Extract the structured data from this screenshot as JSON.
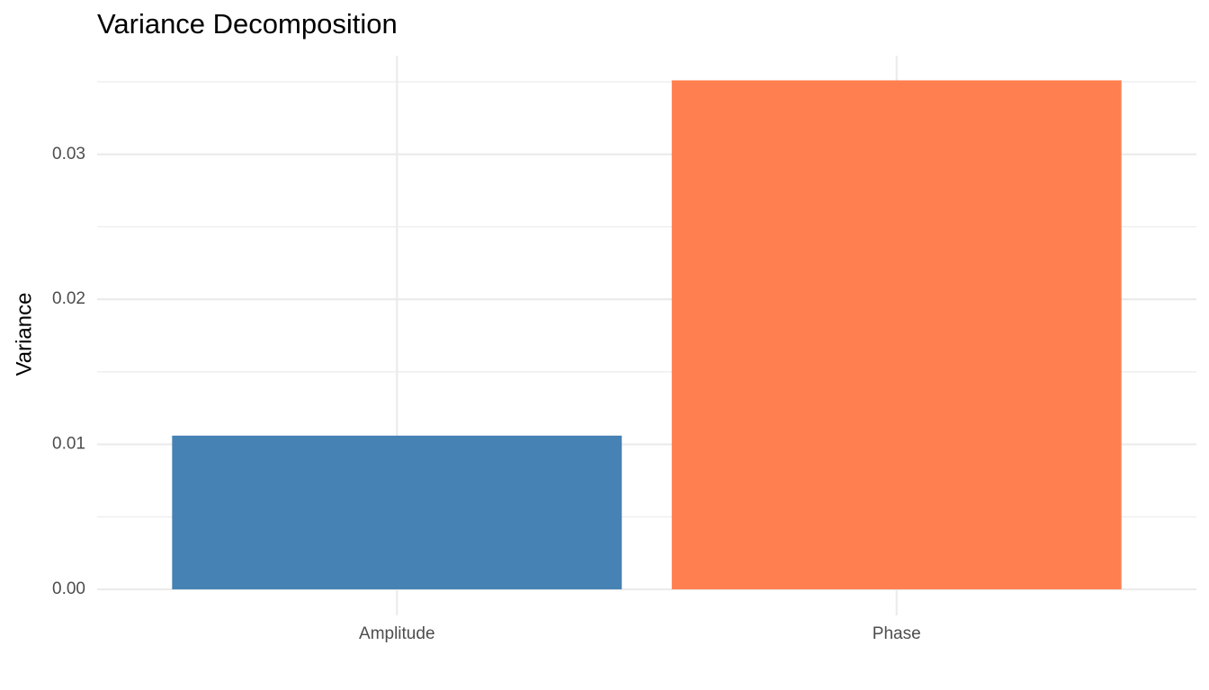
{
  "chart_data": {
    "type": "bar",
    "title": "Variance Decomposition",
    "y_label": "Variance",
    "categories": [
      "Amplitude",
      "Phase"
    ],
    "values": [
      0.0106,
      0.0351
    ],
    "colors": [
      "#4682b4",
      "#ff7f50"
    ],
    "ylim": [
      -0.0018,
      0.0368
    ],
    "yticks": [
      {
        "value": 0,
        "label": "0.00"
      },
      {
        "value": 0.01,
        "label": "0.01"
      },
      {
        "value": 0.02,
        "label": "0.02"
      },
      {
        "value": 0.03,
        "label": "0.03"
      }
    ],
    "minor_yticks": [
      0.005,
      0.015,
      0.025,
      0.035
    ],
    "grid": true
  }
}
